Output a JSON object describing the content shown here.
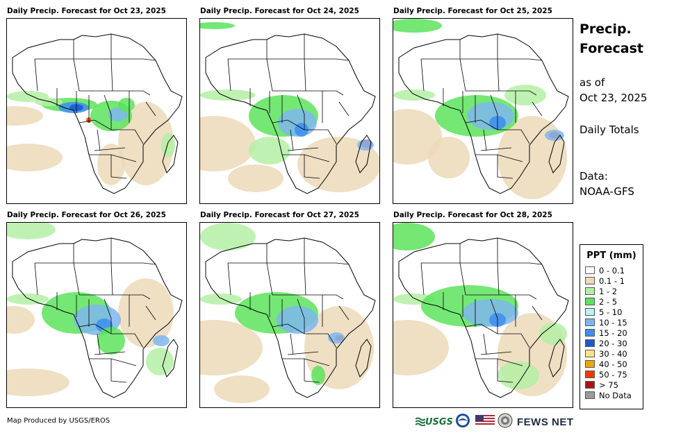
{
  "panels": [
    {
      "title": "Daily Precip. Forecast for Oct 23, 2025"
    },
    {
      "title": "Daily Precip. Forecast for Oct 24, 2025"
    },
    {
      "title": "Daily Precip. Forecast for Oct 25, 2025"
    },
    {
      "title": "Daily Precip. Forecast for Oct 26, 2025"
    },
    {
      "title": "Daily Precip. Forecast for Oct 27, 2025"
    },
    {
      "title": "Daily Precip. Forecast for Oct 28, 2025"
    }
  ],
  "side": {
    "title_line1": "Precip.",
    "title_line2": "Forecast",
    "asof_line1": "as of",
    "asof_line2": "Oct 23, 2025",
    "totals": "Daily Totals",
    "data_line1": "Data:",
    "data_line2": "NOAA-GFS"
  },
  "legend": {
    "title": "PPT (mm)",
    "items": [
      {
        "label": "0 - 0.1",
        "color": "#ffffff"
      },
      {
        "label": "0.1 - 1",
        "color": "#ecd9b8"
      },
      {
        "label": "1 - 2",
        "color": "#b4f0a4"
      },
      {
        "label": "2 - 5",
        "color": "#5ce35c"
      },
      {
        "label": "5 - 10",
        "color": "#b9f2f2"
      },
      {
        "label": "10 - 15",
        "color": "#7fb6ee"
      },
      {
        "label": "15 - 20",
        "color": "#3c8ef0"
      },
      {
        "label": "20 - 30",
        "color": "#1d55d8"
      },
      {
        "label": "30 - 40",
        "color": "#fde28a"
      },
      {
        "label": "40 - 50",
        "color": "#f5a100"
      },
      {
        "label": "50 - 75",
        "color": "#f23a00"
      },
      {
        "label": "> 75",
        "color": "#b01212"
      },
      {
        "label": "No Data",
        "color": "#9b9b9b"
      }
    ]
  },
  "footer": {
    "credit": "Map Produced by USGS/EROS",
    "usgs_logo": "USGS",
    "fewsnet_logo": "FEWS NET"
  },
  "icons": [
    "usgs-logo-icon",
    "noaa-logo-icon",
    "us-flag-icon",
    "state-seal-icon"
  ]
}
